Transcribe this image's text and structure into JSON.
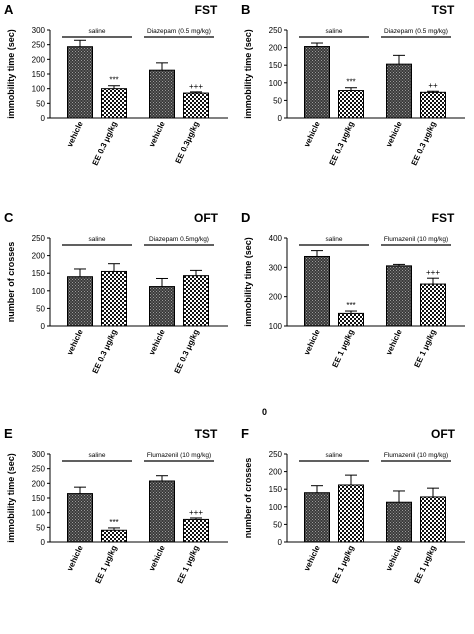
{
  "chart_data": [
    {
      "type": "bar",
      "panel": "A",
      "title": "FST",
      "ylabel": "immobility time (sec)",
      "ylim": [
        0,
        300
      ],
      "yticks": [
        0,
        50,
        100,
        150,
        200,
        250,
        300
      ],
      "categories": [
        "vehicle",
        "EE 0.3 μg/kg",
        "vehicle",
        "EE 0.3μg/kg"
      ],
      "values": [
        243,
        100,
        163,
        85
      ],
      "errors": [
        22,
        10,
        25,
        4
      ],
      "patterns": [
        "solid",
        "check",
        "solid",
        "check"
      ],
      "significance": [
        "",
        "***",
        "",
        "+++"
      ],
      "groups": [
        {
          "label": "saline",
          "range": [
            0,
            1
          ]
        },
        {
          "label": "Diazepam (0.5 mg/kg)",
          "range": [
            2,
            3
          ]
        }
      ]
    },
    {
      "type": "bar",
      "panel": "B",
      "title": "TST",
      "ylabel": "immobility time (sec)",
      "ylim": [
        0,
        250
      ],
      "yticks": [
        0,
        50,
        100,
        150,
        200,
        250
      ],
      "categories": [
        "vehicle",
        "EE 0.3 μg/kg",
        "vehicle",
        "EE 0.3 μg/kg"
      ],
      "values": [
        203,
        78,
        153,
        73
      ],
      "errors": [
        10,
        8,
        25,
        3
      ],
      "patterns": [
        "solid",
        "check",
        "solid",
        "check"
      ],
      "significance": [
        "",
        "***",
        "",
        "++"
      ],
      "groups": [
        {
          "label": "saline",
          "range": [
            0,
            1
          ]
        },
        {
          "label": "Diazepam (0.5 mg/kg)",
          "range": [
            2,
            3
          ]
        }
      ]
    },
    {
      "type": "bar",
      "panel": "C",
      "title": "OFT",
      "ylabel": "number of crosses",
      "ylim": [
        0,
        250
      ],
      "yticks": [
        0,
        50,
        100,
        150,
        200,
        250
      ],
      "categories": [
        "vehicle",
        "EE 0.3 μg/kg",
        "vehicle",
        "EE 0.3 μg/kg"
      ],
      "values": [
        140,
        155,
        112,
        143
      ],
      "errors": [
        22,
        22,
        23,
        15
      ],
      "patterns": [
        "solid",
        "check",
        "solid",
        "check"
      ],
      "significance": [
        "",
        "",
        "",
        ""
      ],
      "groups": [
        {
          "label": "saline",
          "range": [
            0,
            1
          ]
        },
        {
          "label": "Diazepam 0.5mg/kg)",
          "range": [
            2,
            3
          ]
        }
      ]
    },
    {
      "type": "bar",
      "panel": "D",
      "title": "FST",
      "ylabel": "immobility time (sec)",
      "ylim": [
        100,
        400
      ],
      "yticks": [
        100,
        200,
        300,
        400
      ],
      "categories": [
        "vehicle",
        "EE 1 μg/kg",
        "vehicle",
        "EE 1 μg/kg"
      ],
      "values": [
        337,
        143,
        305,
        243
      ],
      "errors": [
        20,
        8,
        5,
        20
      ],
      "patterns": [
        "solid",
        "check",
        "solid",
        "check"
      ],
      "significance": [
        "",
        "***",
        "",
        "+++"
      ],
      "groups": [
        {
          "label": "saline",
          "range": [
            0,
            1
          ]
        },
        {
          "label": "Flumazenil (10 mg/kg)",
          "range": [
            2,
            3
          ]
        }
      ]
    },
    {
      "type": "bar",
      "panel": "E",
      "title": "TST",
      "ylabel": "immobility time (sec)",
      "ylim": [
        0,
        300
      ],
      "yticks": [
        0,
        50,
        100,
        150,
        200,
        250,
        300
      ],
      "categories": [
        "vehicle",
        "EE 1 μg/kg",
        "vehicle",
        "EE 1 μg/kg"
      ],
      "values": [
        165,
        40,
        208,
        77
      ],
      "errors": [
        22,
        8,
        18,
        5
      ],
      "patterns": [
        "solid",
        "check",
        "solid",
        "check"
      ],
      "significance": [
        "",
        "***",
        "",
        "+++"
      ],
      "groups": [
        {
          "label": "saline",
          "range": [
            0,
            1
          ]
        },
        {
          "label": "Flumazenil (10 mg/kg)",
          "range": [
            2,
            3
          ]
        }
      ]
    },
    {
      "type": "bar",
      "panel": "F",
      "title": "OFT",
      "ylabel": "number of crosses",
      "ylim": [
        0,
        250
      ],
      "yticks": [
        0,
        50,
        100,
        150,
        200,
        250
      ],
      "categories": [
        "vehicle",
        "EE 1 μg/kg",
        "vehicle",
        "EE 1 μg/kg"
      ],
      "values": [
        140,
        162,
        113,
        128
      ],
      "errors": [
        20,
        28,
        32,
        25
      ],
      "patterns": [
        "solid",
        "check",
        "solid",
        "check"
      ],
      "significance": [
        "",
        "",
        "",
        ""
      ],
      "groups": [
        {
          "label": "saline",
          "range": [
            0,
            1
          ]
        },
        {
          "label": "Flumazenil (10 mg/kg)",
          "range": [
            2,
            3
          ]
        }
      ]
    }
  ],
  "stray_label": "0"
}
